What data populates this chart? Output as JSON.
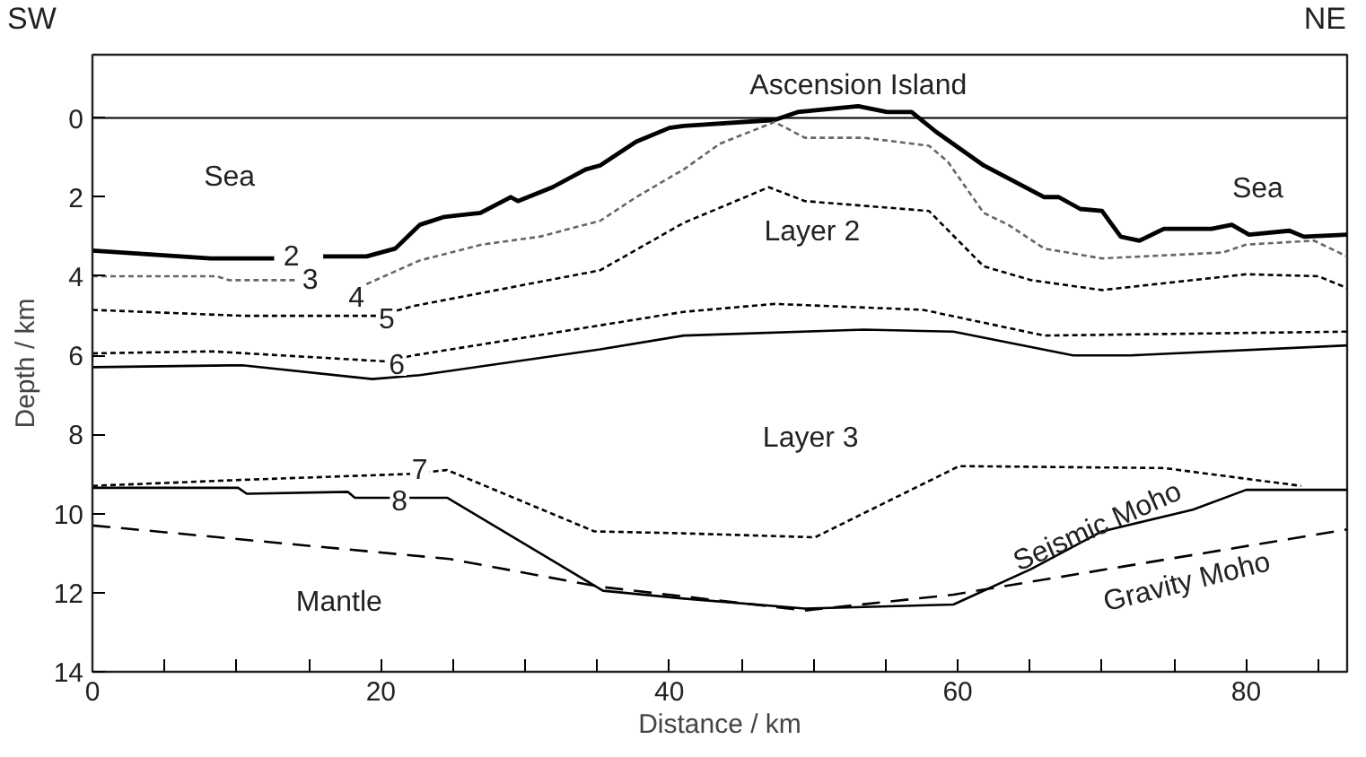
{
  "chart_data": {
    "type": "line",
    "xlabel": "Distance / km",
    "ylabel": "Depth / km",
    "xlim": [
      0,
      87
    ],
    "ylim": [
      14,
      -1.6
    ],
    "xticks": [
      0,
      {
        "value": 5,
        "label": null
      },
      {
        "value": 10,
        "label": null
      },
      {
        "value": 15,
        "label": null
      },
      20,
      {
        "value": 25,
        "label": null
      },
      {
        "value": 30,
        "label": null
      },
      {
        "value": 35,
        "label": null
      },
      40,
      {
        "value": 45,
        "label": null
      },
      {
        "value": 50,
        "label": null
      },
      {
        "value": 55,
        "label": null
      },
      60,
      {
        "value": 65,
        "label": null
      },
      {
        "value": 70,
        "label": null
      },
      {
        "value": 75,
        "label": null
      },
      80,
      {
        "value": 85,
        "label": null
      }
    ],
    "yticks": [
      0,
      2,
      4,
      6,
      8,
      10,
      12,
      14
    ],
    "grid": false,
    "ref_lines": [
      {
        "axis": "y",
        "value": 0,
        "color": "#000000",
        "line_style": "solid"
      }
    ],
    "series": [
      {
        "color": "#000000",
        "line_style": "solid",
        "x": [
          0,
          8.2,
          12.6,
          null,
          16,
          19,
          21,
          22.7,
          24.4,
          26.9,
          29,
          29.5,
          31.9,
          34.2,
          35.2,
          37.7,
          40,
          41,
          47.3,
          48.9,
          53.1,
          55.1,
          56.8,
          58.5,
          61.8,
          66,
          67,
          68.5,
          70,
          71.3,
          72.6,
          74.3,
          77.6,
          79,
          80.2,
          83,
          84,
          87
        ],
        "values": [
          3.35,
          3.55,
          3.55,
          null,
          3.5,
          3.5,
          3.3,
          2.7,
          2.5,
          2.4,
          2.0,
          2.1,
          1.75,
          1.3,
          1.2,
          0.6,
          0.25,
          0.2,
          0.05,
          -0.15,
          -0.3,
          -0.15,
          -0.15,
          0.35,
          1.2,
          2.0,
          2.0,
          2.3,
          2.35,
          3.0,
          3.1,
          2.8,
          2.8,
          2.7,
          2.95,
          2.85,
          3.0,
          2.95
        ]
      },
      {
        "color": "#666666",
        "line_style": "dotted",
        "x": [
          0,
          8.6,
          9.5,
          14.2
        ],
        "values": [
          4.0,
          4.0,
          4.1,
          4.1
        ]
      },
      {
        "color": "#666666",
        "line_style": "dotted",
        "x": [
          19,
          22.7,
          27,
          31,
          35.2,
          37.7,
          41,
          43.5,
          47.3,
          49.4,
          51.4,
          53.5,
          58,
          59.3,
          61.8,
          63.5,
          66,
          70,
          78.4,
          80,
          84.7,
          87
        ],
        "values": [
          4.2,
          3.6,
          3.2,
          3.0,
          2.6,
          2.0,
          1.3,
          0.65,
          0.1,
          0.5,
          0.5,
          0.5,
          0.7,
          1.1,
          2.4,
          2.7,
          3.3,
          3.55,
          3.4,
          3.2,
          3.1,
          3.5
        ]
      },
      {
        "color": "#000000",
        "line_style": "dotted",
        "x": [
          0,
          10.4,
          19.8,
          22.3,
          35.2,
          41,
          46.9,
          49.4,
          58,
          61.8,
          65.1,
          70,
          80,
          85,
          87
        ],
        "values": [
          4.85,
          5.0,
          5.0,
          4.75,
          3.85,
          2.65,
          1.75,
          2.1,
          2.35,
          3.75,
          4.1,
          4.35,
          3.95,
          4.0,
          4.3
        ]
      },
      {
        "color": "#000000",
        "line_style": "dotted",
        "x": [
          0,
          8.3,
          20.2,
          22.3,
          41,
          47.3,
          57.6,
          66,
          87
        ],
        "values": [
          5.95,
          5.9,
          6.15,
          6.0,
          4.9,
          4.7,
          4.85,
          5.5,
          5.4
        ]
      },
      {
        "color": "#000000",
        "line_style": "solid",
        "x": [
          0,
          10.4,
          19.4,
          22.7,
          35.2,
          41,
          53.5,
          59.7,
          68,
          72,
          87
        ],
        "values": [
          6.3,
          6.25,
          6.6,
          6.5,
          5.85,
          5.5,
          5.35,
          5.4,
          6.0,
          6.0,
          5.75
        ]
      },
      {
        "color": "#000000",
        "line_style": "dotted",
        "x": [
          0,
          10.2,
          21.9,
          24.6,
          34.8,
          41,
          50.1,
          60.1,
          74.3,
          83.8
        ],
        "values": [
          9.3,
          9.15,
          9.0,
          8.9,
          10.45,
          10.5,
          10.6,
          8.8,
          8.85,
          9.3
        ]
      },
      {
        "color": "#000000",
        "line_style": "solid",
        "x": [
          0,
          10.1,
          10.7,
          17.7,
          18.2,
          24.6,
          35.4,
          41,
          49.4,
          59.7,
          65.1,
          70,
          76.3,
          80,
          87
        ],
        "values": [
          9.35,
          9.35,
          9.5,
          9.45,
          9.6,
          9.6,
          11.95,
          12.15,
          12.4,
          12.3,
          11.4,
          10.45,
          9.9,
          9.4,
          9.4
        ]
      },
      {
        "color": "#000000",
        "line_style": "dashed",
        "x": [
          0,
          24.8,
          35.2,
          49.4,
          59.7,
          87
        ],
        "values": [
          10.3,
          11.15,
          11.85,
          12.45,
          12.05,
          10.4
        ]
      }
    ],
    "annotations": [
      "SW",
      "NE",
      "2",
      "3",
      "4",
      "5",
      "6",
      "7",
      "8",
      "Sea",
      "Ascension Island",
      "Sea",
      "Layer 2",
      "Layer 3",
      "Mantle",
      "Seismic Moho",
      "Gravity Moho"
    ]
  }
}
